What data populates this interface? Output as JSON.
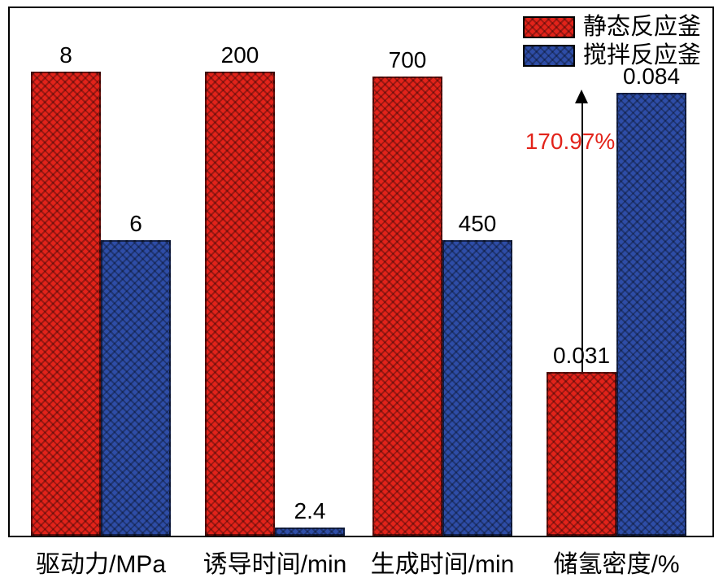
{
  "chart_data": {
    "type": "bar",
    "categories": [
      "驱动力/MPa",
      "诱导时间/min",
      "生成时间/min",
      "储氢密度/%"
    ],
    "series": [
      {
        "name": "静态反应釜",
        "color": "#e2231a",
        "values": [
          8,
          200,
          700,
          0.031
        ],
        "value_labels": [
          "8",
          "200",
          "700",
          "0.031"
        ]
      },
      {
        "name": "搅拌反应釜",
        "color": "#2e4da7",
        "values": [
          6,
          2.4,
          450,
          0.084
        ],
        "value_labels": [
          "6",
          "2.4",
          "450",
          "0.084"
        ]
      }
    ],
    "annotation": {
      "text": "170.97%",
      "color": "#e2231a",
      "group_index": 3
    },
    "legend_position": "top-right",
    "grid": false,
    "bar_height_fractions": [
      [
        0.88,
        0.56
      ],
      [
        0.88,
        0.016
      ],
      [
        0.87,
        0.56
      ],
      [
        0.31,
        0.84
      ]
    ]
  }
}
